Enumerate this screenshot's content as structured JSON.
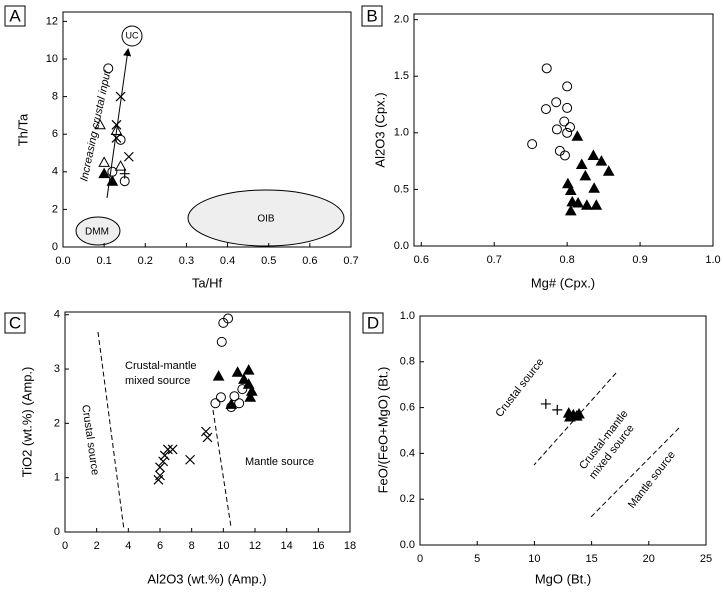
{
  "chart_data": [
    {
      "type": "scatter",
      "panel": "A",
      "x_label": "Ta/Hf",
      "y_label": "Th/Ta",
      "xlim": [
        0,
        0.7
      ],
      "ylim": [
        0,
        12.5
      ],
      "xticks": [
        {
          "value": 0,
          "label": "0.0"
        },
        0.1,
        0.2,
        0.3,
        0.4,
        0.5,
        0.6,
        0.7
      ],
      "yticks": [
        0,
        2,
        4,
        6,
        8,
        10,
        12
      ],
      "annotations": [
        "UC",
        "DMM",
        "OIB",
        "Increasing crustal input"
      ],
      "series": [
        {
          "marker": "circle",
          "color": "#000000",
          "x": [
            0.11,
            0.14,
            0.12,
            0.15
          ],
          "values": [
            9.5,
            5.7,
            4.0,
            3.5
          ]
        },
        {
          "marker": "triangle-open",
          "color": "#000000",
          "x": [
            0.09,
            0.13,
            0.1,
            0.14
          ],
          "values": [
            6.5,
            6.2,
            4.5,
            4.3
          ]
        },
        {
          "marker": "triangle-filled",
          "color": "#000000",
          "x": [
            0.1,
            0.12
          ],
          "values": [
            3.9,
            3.5
          ]
        },
        {
          "marker": "cross",
          "color": "#000000",
          "x": [
            0.14,
            0.13,
            0.16,
            0.13
          ],
          "values": [
            8.0,
            6.5,
            4.8,
            5.8
          ]
        },
        {
          "marker": "plus",
          "color": "#000000",
          "x": [
            0.15
          ],
          "values": [
            3.9
          ]
        }
      ]
    },
    {
      "type": "scatter",
      "panel": "B",
      "x_label": "Mg# (Cpx.)",
      "y_label": "Al2O3 (Cpx.)",
      "xlim": [
        0.59,
        1.0
      ],
      "ylim": [
        0,
        2.05
      ],
      "xticks": [
        0.6,
        0.7,
        0.8,
        0.9,
        {
          "value": 1.0,
          "label": "1.0"
        }
      ],
      "yticks": [
        {
          "value": 0,
          "label": "0.0"
        },
        0.5,
        {
          "value": 1.0,
          "label": "1.0"
        },
        1.5,
        {
          "value": 2.0,
          "label": "2.0"
        }
      ],
      "annotations": [],
      "series": [
        {
          "marker": "circle",
          "color": "#000000",
          "x": [
            0.772,
            0.8,
            0.785,
            0.771,
            0.8,
            0.796,
            0.804,
            0.786,
            0.8,
            0.752,
            0.79,
            0.797
          ],
          "values": [
            1.57,
            1.41,
            1.27,
            1.21,
            1.22,
            1.1,
            1.05,
            1.03,
            1.0,
            0.9,
            0.84,
            0.8
          ]
        },
        {
          "marker": "triangle-filled",
          "color": "#000000",
          "x": [
            0.814,
            0.836,
            0.847,
            0.857,
            0.82,
            0.825,
            0.801,
            0.805,
            0.837,
            0.807,
            0.805,
            0.815,
            0.827,
            0.84
          ],
          "values": [
            0.97,
            0.8,
            0.75,
            0.66,
            0.72,
            0.62,
            0.55,
            0.49,
            0.51,
            0.39,
            0.31,
            0.38,
            0.36,
            0.36
          ]
        }
      ]
    },
    {
      "type": "scatter",
      "panel": "C",
      "x_label": "Al2O3 (wt.%) (Amp.)",
      "y_label": "TiO2 (wt.%) (Amp.)",
      "xlim": [
        0,
        18
      ],
      "ylim": [
        0,
        4.05
      ],
      "xticks": [
        0,
        2,
        4,
        6,
        8,
        10,
        12,
        14,
        16,
        18
      ],
      "yticks": [
        0,
        1,
        2,
        3,
        4
      ],
      "annotations": [
        "Crustal-mantle",
        "mixed source",
        "Mantle source",
        "Crustal source"
      ],
      "series": [
        {
          "marker": "circle",
          "color": "#000000",
          "x": [
            10.3,
            10.0,
            9.9,
            9.5,
            9.85,
            10.7,
            11.0,
            11.2,
            10.5
          ],
          "values": [
            3.93,
            3.85,
            3.5,
            2.37,
            2.48,
            2.5,
            2.37,
            2.63,
            2.3
          ]
        },
        {
          "marker": "triangle-filled",
          "color": "#000000",
          "x": [
            9.7,
            10.9,
            11.6,
            11.3,
            11.6,
            11.8,
            10.5,
            11.7
          ],
          "values": [
            2.87,
            2.94,
            2.98,
            2.81,
            2.72,
            2.59,
            2.35,
            2.48
          ]
        },
        {
          "marker": "cross",
          "color": "#000000",
          "x": [
            6.0,
            6.0,
            6.2,
            6.3,
            6.5,
            6.8,
            8.9,
            9.0,
            7.9,
            5.9
          ],
          "values": [
            1.04,
            1.19,
            1.3,
            1.41,
            1.52,
            1.52,
            1.85,
            1.74,
            1.33,
            0.96
          ]
        }
      ]
    },
    {
      "type": "scatter",
      "panel": "D",
      "x_label": "MgO (Bt.)",
      "y_label": "FeO/(FeO+MgO) (Bt.)",
      "xlim": [
        0,
        25
      ],
      "ylim": [
        0,
        1.0
      ],
      "xticks": [
        0,
        5,
        10,
        15,
        20,
        25
      ],
      "yticks": [
        {
          "value": 0,
          "label": "0.0"
        },
        0.2,
        0.4,
        0.6,
        0.8,
        {
          "value": 1.0,
          "label": "1.0"
        }
      ],
      "annotations": [
        "Crustal source",
        "Crustal-mantle",
        "mixed  source",
        "Mantle source"
      ],
      "series": [
        {
          "marker": "plus",
          "color": "#000000",
          "x": [
            11.0,
            12.0
          ],
          "values": [
            0.616,
            0.59
          ]
        },
        {
          "marker": "triangle-filled",
          "color": "#000000",
          "x": [
            13.0,
            13.4,
            13.7,
            13.1,
            13.9
          ],
          "values": [
            0.576,
            0.568,
            0.563,
            0.559,
            0.572
          ]
        }
      ]
    }
  ]
}
